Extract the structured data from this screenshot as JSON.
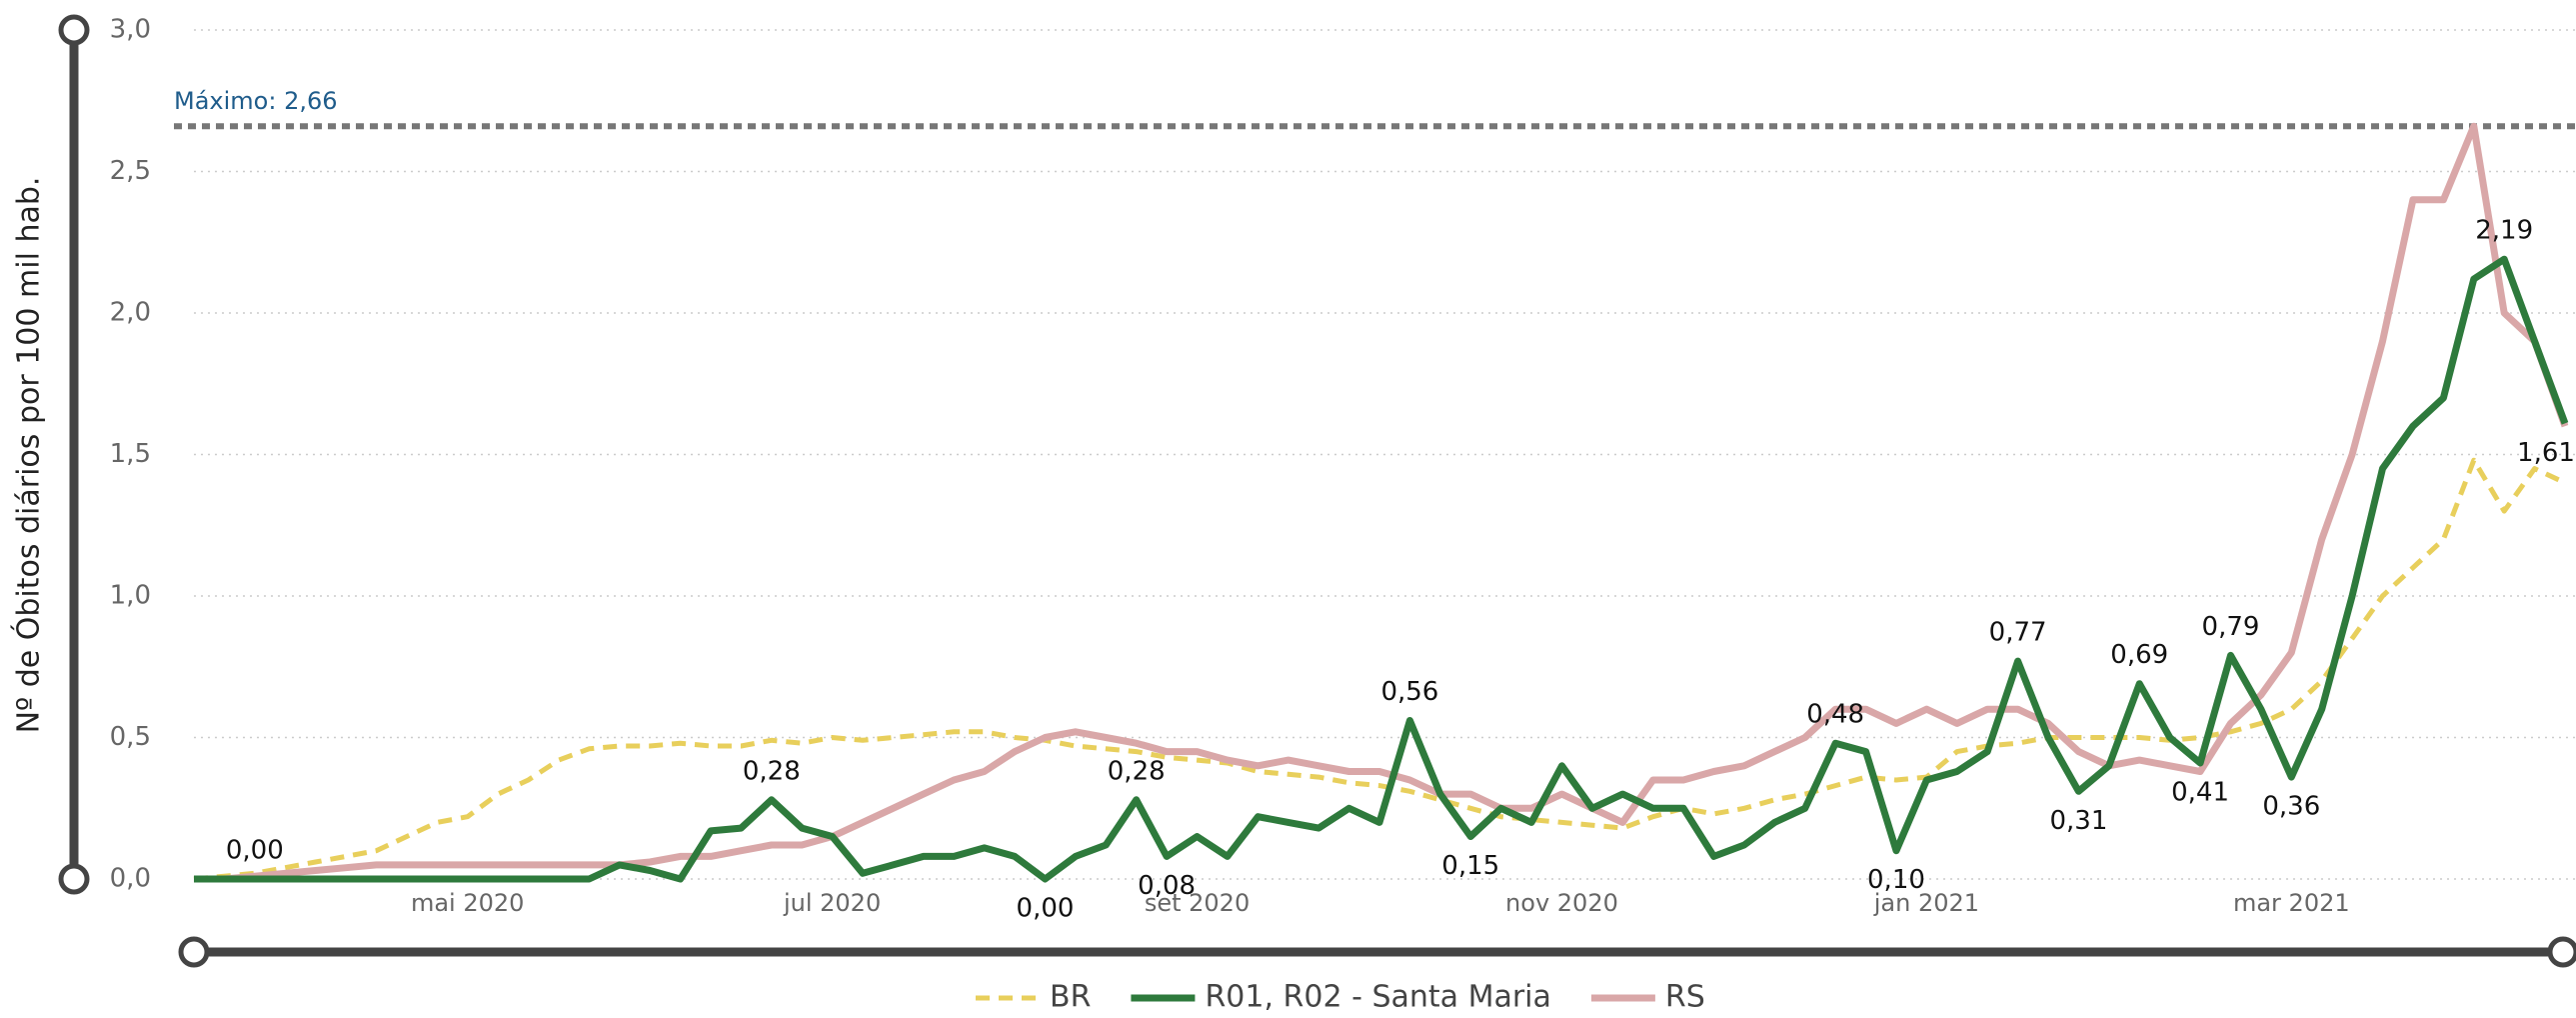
{
  "chart_data": {
    "type": "line",
    "ylabel": "Nº de Óbitos diários por 100 mil hab.",
    "ylim": [
      0,
      3
    ],
    "yticks": [
      {
        "value": 0,
        "label": "0,0"
      },
      {
        "value": 0.5,
        "label": "0,5"
      },
      {
        "value": 1,
        "label": "1,0"
      },
      {
        "value": 1.5,
        "label": "1,5"
      },
      {
        "value": 2,
        "label": "2,0"
      },
      {
        "value": 2.5,
        "label": "2,5"
      },
      {
        "value": 3,
        "label": "3,0"
      }
    ],
    "grid": true,
    "max_line": {
      "value": 2.66,
      "label": "Máximo: 2,66",
      "color": "#777777"
    },
    "categories": [
      null,
      null,
      null,
      null,
      null,
      null,
      null,
      null,
      null,
      "mai 2020",
      null,
      null,
      null,
      null,
      null,
      null,
      null,
      null,
      null,
      null,
      null,
      "jul 2020",
      null,
      null,
      null,
      null,
      null,
      null,
      null,
      null,
      null,
      null,
      null,
      "set 2020",
      null,
      null,
      null,
      null,
      null,
      null,
      null,
      null,
      null,
      null,
      null,
      "nov 2020",
      null,
      null,
      null,
      null,
      null,
      null,
      null,
      null,
      null,
      null,
      null,
      "jan 2021",
      null,
      null,
      null,
      null,
      null,
      null,
      null,
      null,
      null,
      null,
      null,
      "mar 2021",
      null,
      null,
      null,
      null,
      null,
      null,
      null,
      null,
      null
    ],
    "series": [
      {
        "name": "BR",
        "color": "#e8cf5c",
        "dashed": true,
        "values": [
          0,
          0.01,
          0.02,
          0.04,
          0.06,
          0.08,
          0.1,
          0.15,
          0.2,
          0.22,
          0.3,
          0.35,
          0.42,
          0.46,
          0.47,
          0.47,
          0.48,
          0.47,
          0.47,
          0.49,
          0.48,
          0.5,
          0.49,
          0.5,
          0.51,
          0.52,
          0.52,
          0.5,
          0.49,
          0.47,
          0.46,
          0.45,
          0.43,
          0.42,
          0.41,
          0.38,
          0.37,
          0.36,
          0.34,
          0.33,
          0.31,
          0.28,
          0.25,
          0.22,
          0.21,
          0.2,
          0.19,
          0.18,
          0.22,
          0.25,
          0.23,
          0.25,
          0.28,
          0.3,
          0.33,
          0.36,
          0.35,
          0.36,
          0.45,
          0.47,
          0.48,
          0.5,
          0.5,
          0.5,
          0.5,
          0.49,
          0.5,
          0.52,
          0.55,
          0.6,
          0.7,
          0.85,
          1.0,
          1.1,
          1.2,
          1.48,
          1.3,
          1.45,
          1.4
        ]
      },
      {
        "name": "R01, R02 - Santa Maria",
        "color": "#2e7a3c",
        "dashed": false,
        "values": [
          0,
          0,
          0,
          0,
          0,
          0,
          0,
          0,
          0,
          0,
          0,
          0,
          0,
          0,
          0.05,
          0.03,
          0,
          0.17,
          0.18,
          0.28,
          0.18,
          0.15,
          0.02,
          0.05,
          0.08,
          0.08,
          0.11,
          0.08,
          0,
          0.08,
          0.12,
          0.28,
          0.08,
          0.15,
          0.08,
          0.22,
          0.2,
          0.18,
          0.25,
          0.2,
          0.56,
          0.3,
          0.15,
          0.25,
          0.2,
          0.4,
          0.25,
          0.3,
          0.25,
          0.25,
          0.08,
          0.12,
          0.2,
          0.25,
          0.48,
          0.45,
          0.1,
          0.35,
          0.38,
          0.45,
          0.77,
          0.5,
          0.31,
          0.4,
          0.69,
          0.5,
          0.41,
          0.79,
          0.6,
          0.36,
          0.6,
          1.0,
          1.45,
          1.6,
          1.7,
          2.12,
          2.19,
          1.9,
          1.61
        ],
        "value_labels": [
          null,
          null,
          "0,00",
          null,
          null,
          null,
          null,
          null,
          null,
          null,
          null,
          null,
          null,
          null,
          null,
          null,
          null,
          null,
          null,
          "0,28",
          null,
          null,
          null,
          null,
          null,
          null,
          null,
          null,
          "0,00",
          null,
          null,
          "0,28",
          "0,08",
          null,
          null,
          null,
          null,
          null,
          null,
          null,
          "0,56",
          null,
          "0,15",
          null,
          null,
          null,
          null,
          null,
          null,
          null,
          null,
          null,
          null,
          null,
          "0,48",
          null,
          "0,10",
          null,
          null,
          null,
          "0,77",
          null,
          "0,31",
          null,
          "0,69",
          null,
          "0,41",
          "0,79",
          null,
          "0,36",
          null,
          null,
          null,
          null,
          null,
          null,
          "2,19",
          null,
          "1,61"
        ]
      },
      {
        "name": "RS",
        "color": "#d9a7a8",
        "dashed": false,
        "values": [
          0,
          0,
          0.01,
          0.02,
          0.03,
          0.04,
          0.05,
          0.05,
          0.05,
          0.05,
          0.05,
          0.05,
          0.05,
          0.05,
          0.05,
          0.06,
          0.08,
          0.08,
          0.1,
          0.12,
          0.12,
          0.15,
          0.2,
          0.25,
          0.3,
          0.35,
          0.38,
          0.45,
          0.5,
          0.52,
          0.5,
          0.48,
          0.45,
          0.45,
          0.42,
          0.4,
          0.42,
          0.4,
          0.38,
          0.38,
          0.35,
          0.3,
          0.3,
          0.25,
          0.25,
          0.3,
          0.25,
          0.2,
          0.35,
          0.35,
          0.38,
          0.4,
          0.45,
          0.5,
          0.6,
          0.6,
          0.55,
          0.6,
          0.55,
          0.6,
          0.6,
          0.55,
          0.45,
          0.4,
          0.42,
          0.4,
          0.38,
          0.55,
          0.65,
          0.8,
          1.2,
          1.5,
          1.9,
          2.4,
          2.4,
          2.66,
          2.0,
          1.9,
          1.6
        ]
      }
    ]
  }
}
